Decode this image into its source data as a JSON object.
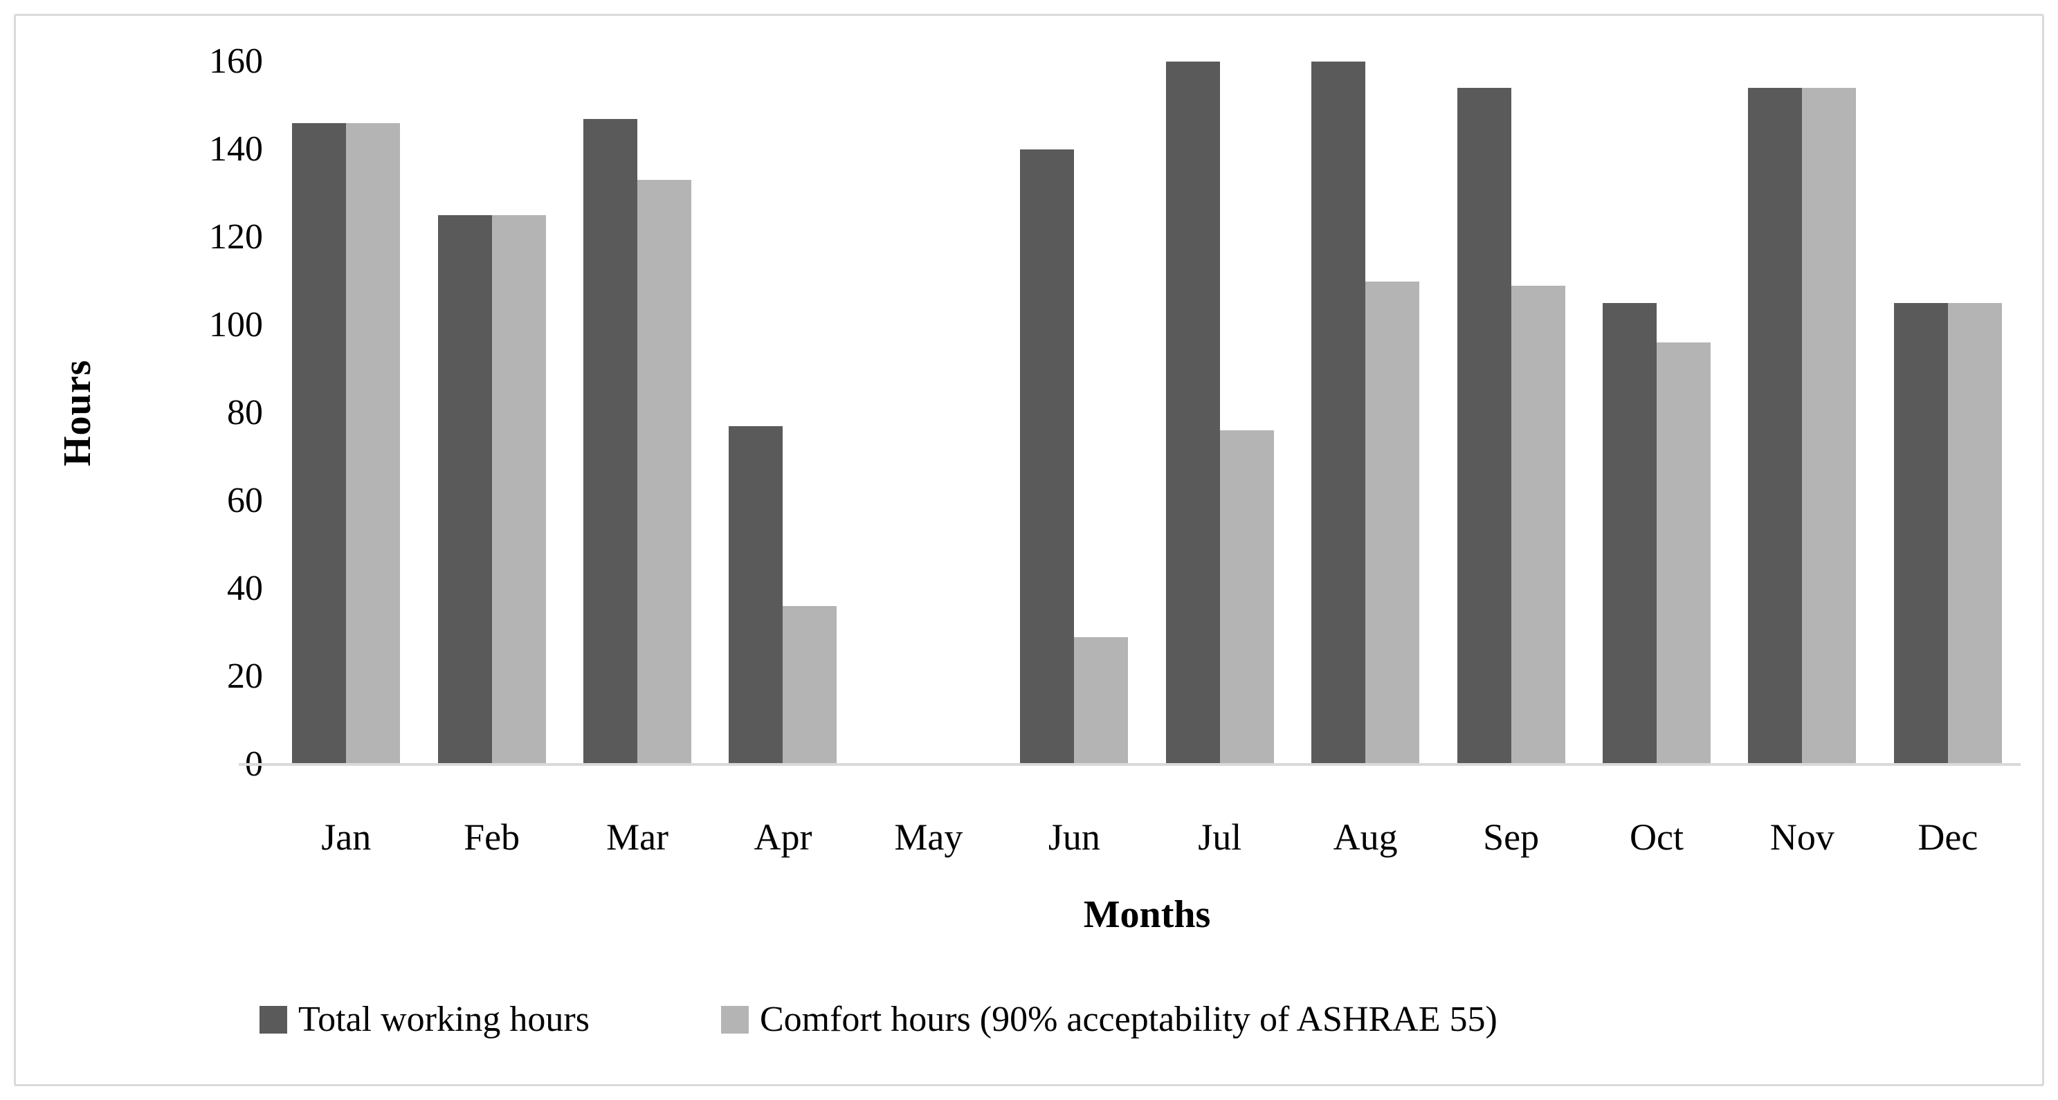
{
  "figure": {
    "background": "#ffffff",
    "border_color": "#d9d9d9",
    "axis_line_color": "#d9d9d9",
    "text_color": "#000000"
  },
  "chart_data": {
    "type": "bar",
    "title": "",
    "categories": [
      "Jan",
      "Feb",
      "Mar",
      "Apr",
      "May",
      "Jun",
      "Jul",
      "Aug",
      "Sep",
      "Oct",
      "Nov",
      "Dec"
    ],
    "series": [
      {
        "name": "Total working hours",
        "color": "#5a5a5a",
        "values": [
          146,
          125,
          147,
          77,
          0,
          140,
          160,
          160,
          154,
          105,
          154,
          105
        ]
      },
      {
        "name": "Comfort hours (90% acceptability of ASHRAE 55)",
        "color": "#b4b4b4",
        "values": [
          146,
          125,
          133,
          36,
          0,
          29,
          76,
          110,
          109,
          96,
          154,
          105
        ]
      }
    ],
    "xlabel": "Months",
    "ylabel": "Hours",
    "ylim": [
      0,
      160
    ],
    "yticks": [
      0,
      20,
      40,
      60,
      80,
      100,
      120,
      140,
      160
    ],
    "grid": false,
    "legend_position": "bottom"
  }
}
